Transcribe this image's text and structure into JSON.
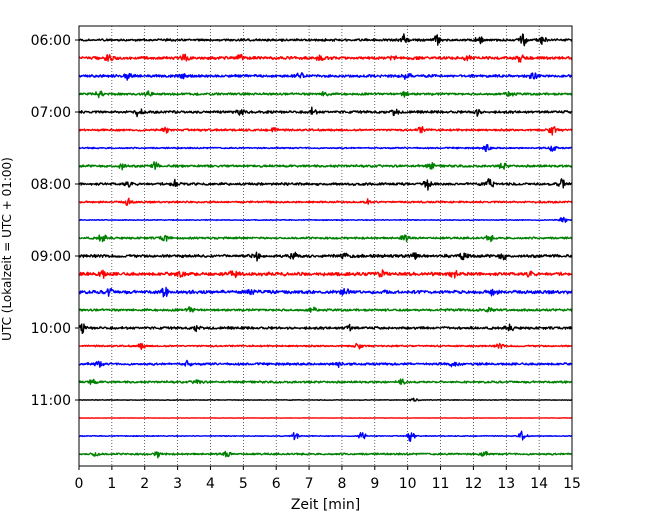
{
  "chart_data": {
    "type": "line",
    "title": "",
    "xlabel": "Zeit  [min]",
    "ylabel": "UTC (Lokalzeit = UTC + 01:00)",
    "xlim": [
      0,
      15
    ],
    "x_ticks": [
      0,
      1,
      2,
      3,
      4,
      5,
      6,
      7,
      8,
      9,
      10,
      11,
      12,
      13,
      14,
      15
    ],
    "y_tick_labels": [
      "06:00",
      "07:00",
      "08:00",
      "09:00",
      "10:00",
      "11:00"
    ],
    "grid": "vertical dotted lines at each minute",
    "trace_interval_minutes": 15,
    "color_cycle": [
      "#000000",
      "#ff0000",
      "#0000ff",
      "#008000"
    ],
    "traces": [
      {
        "start": "06:00",
        "color": "#000000",
        "amplitude": 0.55,
        "bursts": [
          [
            9.9,
            1.0
          ],
          [
            10.9,
            0.8
          ],
          [
            12.2,
            0.9
          ],
          [
            13.5,
            1.0
          ],
          [
            14.1,
            0.6
          ]
        ]
      },
      {
        "start": "06:15",
        "color": "#ff0000",
        "amplitude": 0.7,
        "bursts": [
          [
            0.9,
            0.6
          ],
          [
            3.2,
            0.5
          ],
          [
            4.9,
            0.6
          ],
          [
            7.3,
            0.5
          ],
          [
            9.6,
            0.6
          ],
          [
            11.8,
            0.5
          ],
          [
            13.4,
            0.6
          ]
        ]
      },
      {
        "start": "06:30",
        "color": "#0000ff",
        "amplitude": 0.65,
        "bursts": [
          [
            1.5,
            0.6
          ],
          [
            3.1,
            0.6
          ],
          [
            6.7,
            0.6
          ],
          [
            10.0,
            0.6
          ],
          [
            13.8,
            0.6
          ]
        ]
      },
      {
        "start": "06:45",
        "color": "#008000",
        "amplitude": 0.55,
        "bursts": [
          [
            0.6,
            0.5
          ],
          [
            2.1,
            0.5
          ],
          [
            7.5,
            0.5
          ],
          [
            9.9,
            0.5
          ],
          [
            13.1,
            0.5
          ]
        ]
      },
      {
        "start": "07:00",
        "color": "#000000",
        "amplitude": 0.6,
        "bursts": [
          [
            1.8,
            0.6
          ],
          [
            4.9,
            0.6
          ],
          [
            7.1,
            0.6
          ],
          [
            9.6,
            0.6
          ],
          [
            12.1,
            0.6
          ]
        ]
      },
      {
        "start": "07:15",
        "color": "#ff0000",
        "amplitude": 0.5,
        "bursts": [
          [
            2.6,
            0.5
          ],
          [
            5.9,
            0.5
          ],
          [
            10.4,
            0.5
          ],
          [
            14.4,
            0.8
          ]
        ]
      },
      {
        "start": "07:30",
        "color": "#0000ff",
        "amplitude": 0.35,
        "bursts": [
          [
            12.4,
            0.6
          ],
          [
            14.4,
            0.6
          ]
        ]
      },
      {
        "start": "07:45",
        "color": "#008000",
        "amplitude": 0.55,
        "bursts": [
          [
            1.3,
            0.6
          ],
          [
            2.3,
            0.6
          ],
          [
            10.7,
            0.5
          ],
          [
            12.9,
            0.5
          ]
        ]
      },
      {
        "start": "08:00",
        "color": "#000000",
        "amplitude": 0.6,
        "bursts": [
          [
            1.5,
            0.7
          ],
          [
            2.9,
            0.6
          ],
          [
            10.6,
            0.9
          ],
          [
            12.5,
            1.0
          ],
          [
            14.7,
            1.0
          ]
        ]
      },
      {
        "start": "08:15",
        "color": "#ff0000",
        "amplitude": 0.45,
        "bursts": [
          [
            1.5,
            0.6
          ],
          [
            8.8,
            0.5
          ]
        ]
      },
      {
        "start": "08:30",
        "color": "#0000ff",
        "amplitude": 0.2,
        "bursts": [
          [
            14.7,
            0.7
          ]
        ]
      },
      {
        "start": "08:45",
        "color": "#008000",
        "amplitude": 0.5,
        "bursts": [
          [
            0.7,
            0.7
          ],
          [
            2.6,
            0.6
          ],
          [
            9.9,
            0.6
          ],
          [
            12.5,
            0.5
          ]
        ]
      },
      {
        "start": "09:00",
        "color": "#000000",
        "amplitude": 0.7,
        "bursts": [
          [
            5.4,
            0.8
          ],
          [
            6.5,
            0.7
          ],
          [
            8.1,
            0.6
          ],
          [
            10.2,
            0.7
          ],
          [
            11.7,
            0.6
          ],
          [
            12.9,
            0.6
          ]
        ]
      },
      {
        "start": "09:15",
        "color": "#ff0000",
        "amplitude": 0.8,
        "bursts": [
          [
            0.7,
            0.7
          ],
          [
            3.1,
            0.6
          ],
          [
            4.7,
            0.7
          ],
          [
            9.2,
            0.6
          ],
          [
            11.4,
            0.6
          ],
          [
            13.7,
            0.6
          ]
        ]
      },
      {
        "start": "09:30",
        "color": "#0000ff",
        "amplitude": 0.8,
        "bursts": [
          [
            0.9,
            0.7
          ],
          [
            2.6,
            0.7
          ],
          [
            5.2,
            0.6
          ],
          [
            8.1,
            0.7
          ],
          [
            12.6,
            0.6
          ]
        ]
      },
      {
        "start": "09:45",
        "color": "#008000",
        "amplitude": 0.55,
        "bursts": [
          [
            3.4,
            0.5
          ],
          [
            7.1,
            0.5
          ],
          [
            12.5,
            0.5
          ]
        ]
      },
      {
        "start": "10:00",
        "color": "#000000",
        "amplitude": 0.6,
        "bursts": [
          [
            0.1,
            0.8
          ],
          [
            3.6,
            0.5
          ],
          [
            8.2,
            0.5
          ],
          [
            13.1,
            0.5
          ]
        ]
      },
      {
        "start": "10:15",
        "color": "#ff0000",
        "amplitude": 0.4,
        "bursts": [
          [
            1.9,
            0.5
          ],
          [
            8.5,
            0.5
          ],
          [
            12.8,
            0.4
          ]
        ]
      },
      {
        "start": "10:30",
        "color": "#0000ff",
        "amplitude": 0.55,
        "bursts": [
          [
            0.6,
            0.6
          ],
          [
            3.3,
            0.5
          ],
          [
            7.9,
            0.6
          ],
          [
            11.4,
            0.5
          ]
        ]
      },
      {
        "start": "10:45",
        "color": "#008000",
        "amplitude": 0.5,
        "bursts": [
          [
            0.4,
            0.5
          ],
          [
            3.6,
            0.5
          ],
          [
            9.8,
            0.5
          ]
        ]
      },
      {
        "start": "11:00",
        "color": "#000000",
        "amplitude": 0.15,
        "bursts": [
          [
            10.2,
            0.5
          ]
        ]
      },
      {
        "start": "11:15",
        "color": "#ff0000",
        "amplitude": 0.1,
        "bursts": []
      },
      {
        "start": "11:30",
        "color": "#0000ff",
        "amplitude": 0.2,
        "bursts": [
          [
            6.6,
            0.9
          ],
          [
            8.6,
            0.8
          ],
          [
            10.1,
            0.9
          ],
          [
            13.5,
            0.9
          ]
        ]
      },
      {
        "start": "11:45",
        "color": "#008000",
        "amplitude": 0.45,
        "bursts": [
          [
            0.5,
            0.5
          ],
          [
            2.4,
            0.5
          ],
          [
            4.5,
            0.5
          ],
          [
            12.3,
            0.5
          ]
        ]
      }
    ]
  }
}
